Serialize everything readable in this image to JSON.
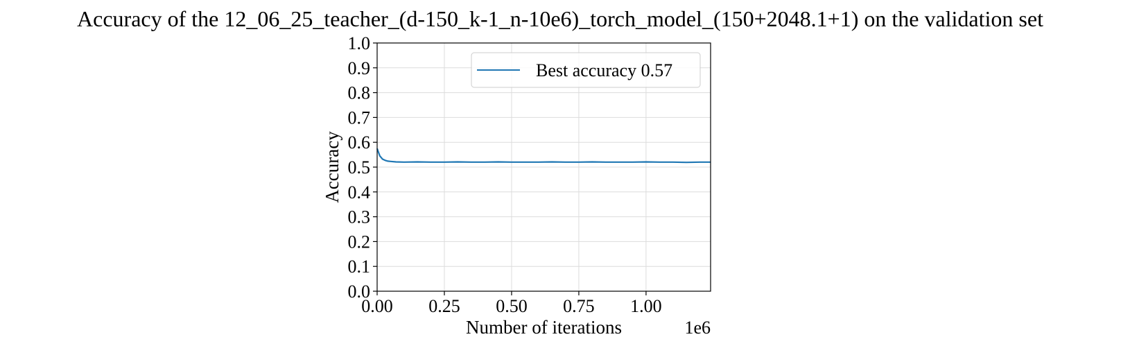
{
  "chart_data": {
    "type": "line",
    "title": "Accuracy of the 12_06_25_teacher_(d-150_k-1_n-10e6)_torch_model_(150+2048.1+1) on the validation set",
    "xlabel": "Number of iterations",
    "ylabel": "Accuracy",
    "x_offset_text": "1e6",
    "xlim": [
      0,
      1240000
    ],
    "ylim": [
      0.0,
      1.0
    ],
    "x_ticks": [
      0,
      250000,
      500000,
      750000,
      1000000
    ],
    "x_tick_labels": [
      "0.00",
      "0.25",
      "0.50",
      "0.75",
      "1.00"
    ],
    "y_ticks": [
      0.0,
      0.1,
      0.2,
      0.3,
      0.4,
      0.5,
      0.6,
      0.7,
      0.8,
      0.9,
      1.0
    ],
    "y_tick_labels": [
      "0.0",
      "0.1",
      "0.2",
      "0.3",
      "0.4",
      "0.5",
      "0.6",
      "0.7",
      "0.8",
      "0.9",
      "1.0"
    ],
    "grid": true,
    "legend_position": "upper-right",
    "series": [
      {
        "name": "Best accuracy 0.57",
        "color": "#1f77b4",
        "x": [
          0,
          5000,
          10000,
          20000,
          30000,
          40000,
          50000,
          70000,
          100000,
          150000,
          200000,
          250000,
          300000,
          350000,
          400000,
          450000,
          500000,
          550000,
          600000,
          650000,
          700000,
          750000,
          800000,
          850000,
          900000,
          950000,
          1000000,
          1050000,
          1100000,
          1150000,
          1200000,
          1240000
        ],
        "y": [
          0.575,
          0.56,
          0.545,
          0.532,
          0.527,
          0.524,
          0.523,
          0.521,
          0.52,
          0.521,
          0.52,
          0.52,
          0.521,
          0.52,
          0.52,
          0.521,
          0.52,
          0.52,
          0.52,
          0.521,
          0.52,
          0.52,
          0.521,
          0.52,
          0.52,
          0.52,
          0.521,
          0.52,
          0.52,
          0.519,
          0.52,
          0.52
        ]
      }
    ]
  }
}
